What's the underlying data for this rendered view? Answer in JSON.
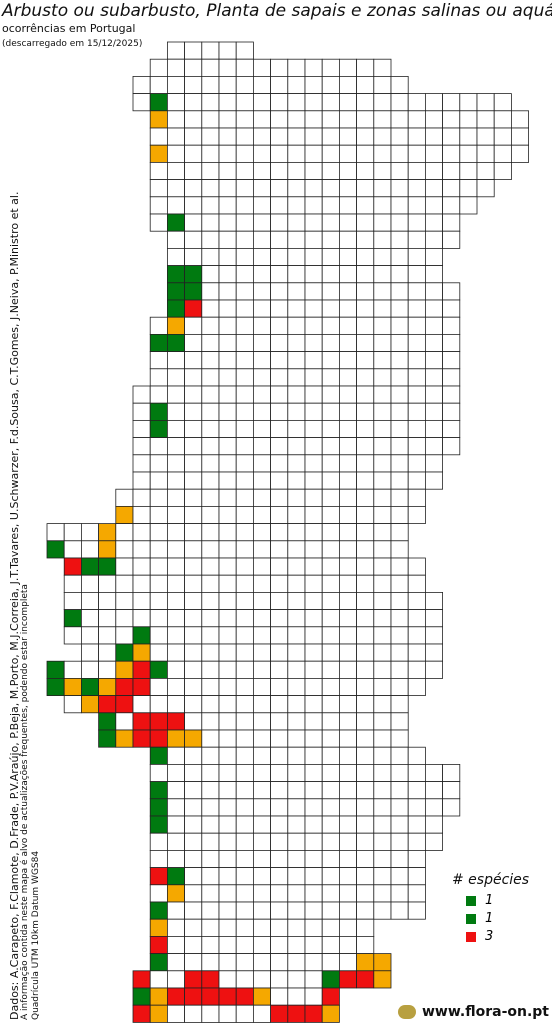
{
  "header": {
    "title": "Arbusto ou subarbusto, Planta de sapais e zonas salinas ou aquática de",
    "subtitle": "ocorrências em Portugal",
    "date": "(descarregado em 15/12/2025)"
  },
  "credits": [
    "Dados: A.Carapeto, F.Clamote, D.Frade, P.V.Araújo, P.Beja, M.Porto, M.J.Correia, J.T.Tavares, U.Schwarzer, F.d.Sousa, C.T.Gomes, J.Neiva, P.Ministro et al.",
    "A informação contida neste mapa é alvo de actualizações frequentes, podendo estar incompleta",
    "Quadrícula UTM 10km Datum WGS84"
  ],
  "legend": {
    "title": "# espécies",
    "items": [
      {
        "label": "1",
        "color": "#007a10"
      },
      {
        "label": "1",
        "color": "#007a10"
      },
      {
        "label": "3",
        "color": "#ee1111"
      }
    ]
  },
  "site": "www.flora-on.pt"
}
